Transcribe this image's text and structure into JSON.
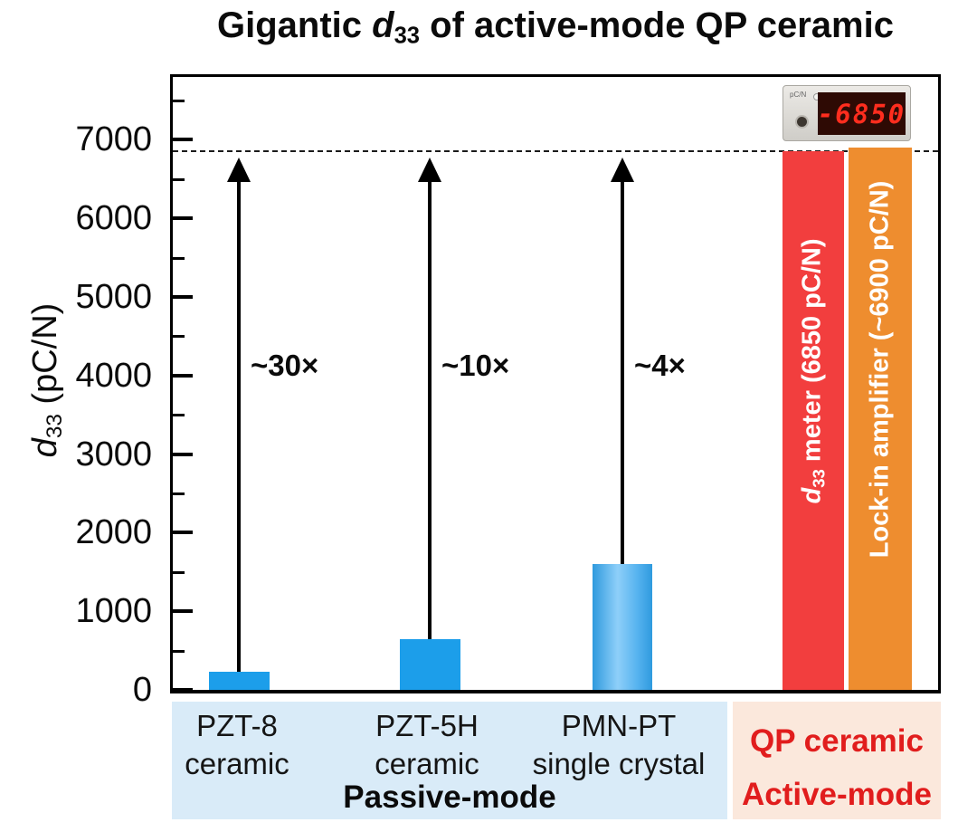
{
  "title": {
    "pre": "Gigantic ",
    "d": "d",
    "sub": "33",
    "post": " of active-mode QP ceramic"
  },
  "y_axis": {
    "d": "d",
    "sub": "33",
    "rest": " (pC/N)"
  },
  "chart_data": {
    "type": "bar",
    "title": "Gigantic d33 of active-mode QP ceramic",
    "ylabel": "d33 (pC/N)",
    "ylim": [
      0,
      7800
    ],
    "yticks": [
      0,
      1000,
      2000,
      3000,
      4000,
      5000,
      6000,
      7000
    ],
    "minor_tick_step": 500,
    "grid": false,
    "legend_position": "none",
    "categories": [
      "PZT-8 ceramic",
      "PZT-5H ceramic",
      "PMN-PT single crystal",
      "QP ceramic (d33 meter)",
      "QP ceramic (Lock-in amplifier)"
    ],
    "values": [
      225,
      650,
      1600,
      6850,
      6900
    ],
    "bar_colors": [
      "#1c9eea",
      "#1c9eea",
      "#1c9eea",
      "#f23e3e",
      "#ee8d2f"
    ],
    "reference_line": 6870,
    "annotations": [
      "~30×",
      "~10×",
      "~4×"
    ],
    "groups": {
      "passive": [
        "PZT-8 ceramic",
        "PZT-5H ceramic",
        "PMN-PT single crystal"
      ],
      "active": [
        "QP ceramic"
      ]
    }
  },
  "bar_labels": {
    "meter": {
      "d": "d",
      "sub": "33",
      "rest": " meter (6850 pC/N)"
    },
    "lockin": "Lock-in amplifier (~6900 pC/N)"
  },
  "meter_device": {
    "display": "-6850",
    "unit": "pC/N"
  },
  "x_groups": [
    {
      "line1": "PZT-8",
      "line2": "ceramic"
    },
    {
      "line1": "PZT-5H",
      "line2": "ceramic"
    },
    {
      "line1": "PMN-PT",
      "line2": "single crystal"
    }
  ],
  "modes": {
    "passive": "Passive-mode",
    "active_group": "QP ceramic",
    "active_mode": "Active-mode"
  },
  "colors": {
    "bar_blue": "#1c9eea",
    "bar_blue_highlight": "#8ecff9",
    "bar_red": "#f23e3e",
    "bar_orange": "#ee8d2f",
    "band_passive": "#d9ebf8",
    "band_active": "#fbe8dc",
    "mode_text_red": "#e11d1d",
    "meter_digits": "#ff2d1e"
  }
}
